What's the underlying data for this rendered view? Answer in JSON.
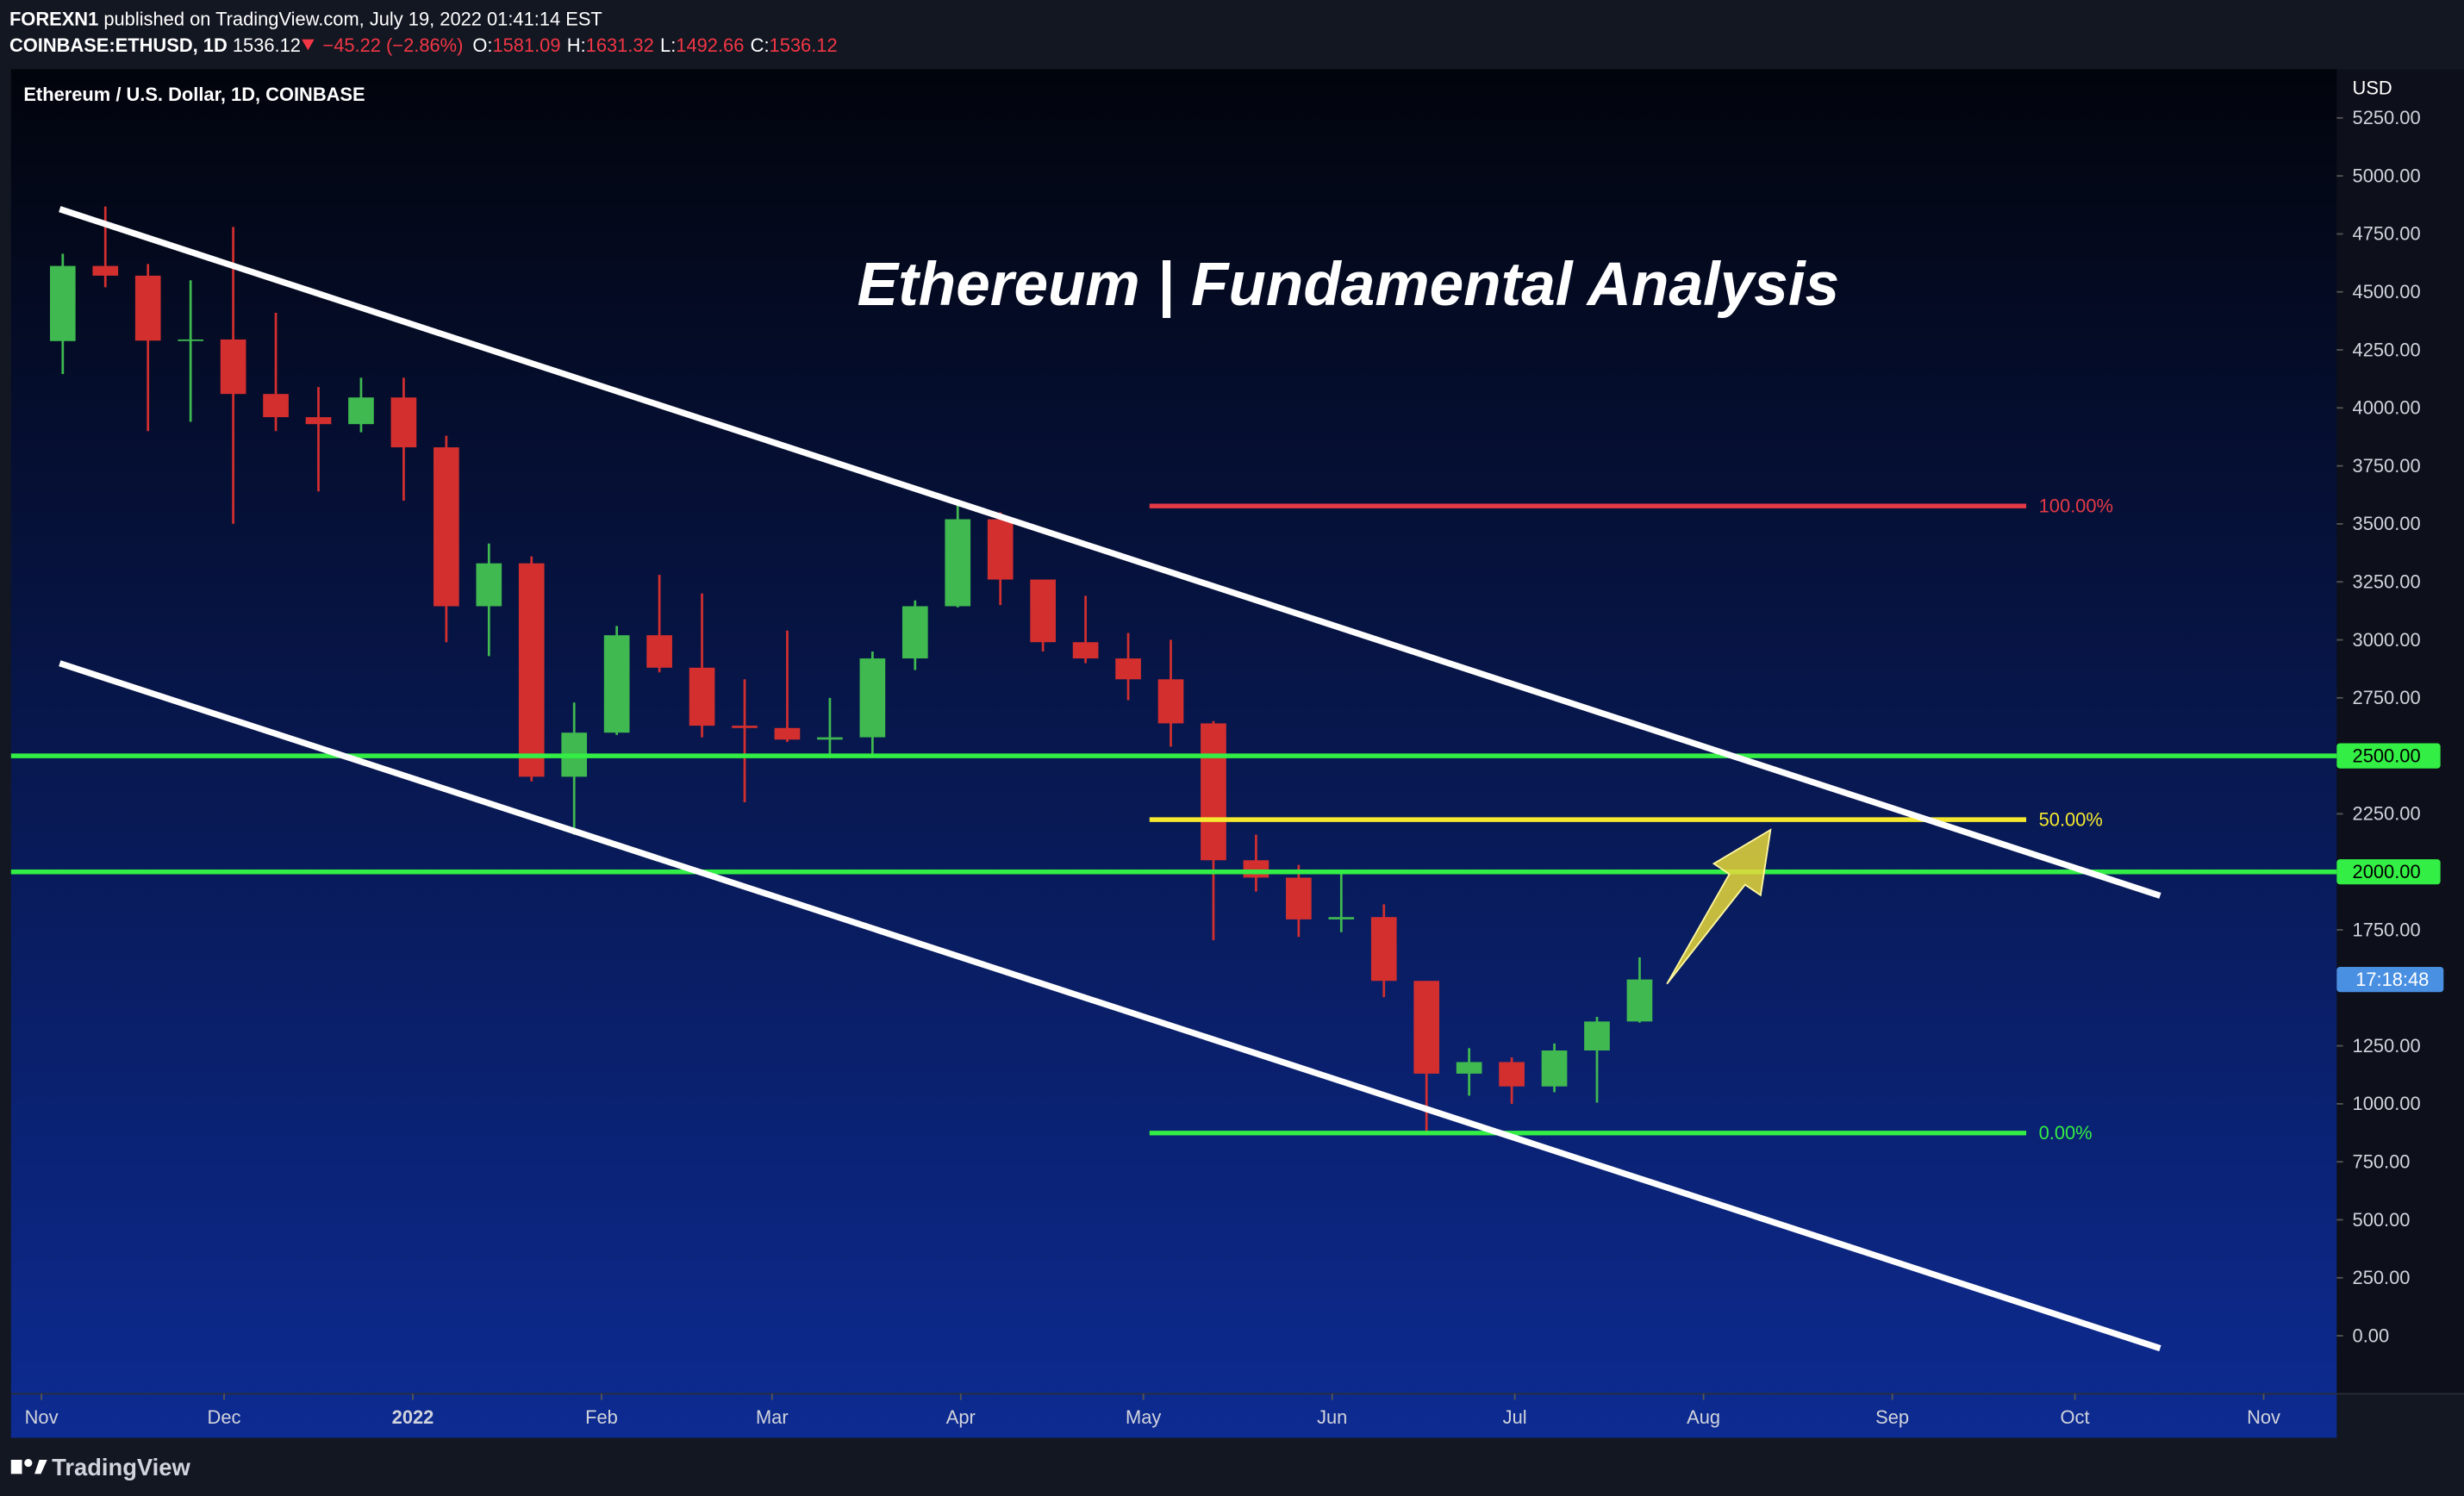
{
  "header": {
    "publisher": "FOREXN1",
    "published": "published on TradingView.com, July 19, 2022 01:41:14 EST",
    "symbol": "COINBASE:ETHUSD, 1D",
    "last": "1536.12",
    "change": "−45.22 (−2.86%)",
    "ohlc": [
      {
        "key": "O:",
        "value": "1581.09"
      },
      {
        "key": "H:",
        "value": "1631.32"
      },
      {
        "key": "L:",
        "value": "1492.66"
      },
      {
        "key": "C:",
        "value": "1536.12"
      }
    ]
  },
  "chart_data": {
    "type": "candlestick",
    "title": "Ethereum | Fundamental Analysis",
    "legend_text": "Ethereum / U.S. Dollar, 1D, COINBASE",
    "y_unit": "USD",
    "up_color": "#3fb950",
    "down_color": "#d32f2f",
    "grid": false,
    "x": [
      "2021-11-01",
      "2021-11-08",
      "2021-11-15",
      "2021-11-22",
      "2021-11-29",
      "2021-12-06",
      "2021-12-13",
      "2021-12-20",
      "2021-12-27",
      "2022-01-03",
      "2022-01-10",
      "2022-01-17",
      "2022-01-24",
      "2022-01-31",
      "2022-02-07",
      "2022-02-14",
      "2022-02-21",
      "2022-02-28",
      "2022-03-07",
      "2022-03-14",
      "2022-03-21",
      "2022-03-28",
      "2022-04-04",
      "2022-04-11",
      "2022-04-18",
      "2022-04-25",
      "2022-05-02",
      "2022-05-09",
      "2022-05-16",
      "2022-05-23",
      "2022-05-30",
      "2022-06-06",
      "2022-06-13",
      "2022-06-20",
      "2022-06-27",
      "2022-07-04",
      "2022-07-11",
      "2022-07-18"
    ],
    "open": [
      4288,
      4612,
      4570,
      4290,
      4295,
      4060,
      3960,
      3930,
      4045,
      3830,
      3145,
      3330,
      2410,
      2600,
      3020,
      2880,
      2630,
      2620,
      2570,
      2580,
      2920,
      3145,
      3520,
      3260,
      2990,
      2920,
      2830,
      2640,
      2050,
      1975,
      1795,
      1805,
      1530,
      1130,
      1180,
      1075,
      1230,
      1355
    ],
    "high": [
      4665,
      4868,
      4620,
      4550,
      4780,
      4410,
      4090,
      4130,
      4130,
      3880,
      3415,
      3360,
      2730,
      3060,
      3280,
      3200,
      2830,
      3040,
      2750,
      2950,
      3170,
      3580,
      3550,
      3260,
      3190,
      3030,
      3000,
      2650,
      2160,
      2030,
      2010,
      1860,
      1530,
      1240,
      1200,
      1260,
      1375,
      1631
    ],
    "low": [
      4146,
      4520,
      3900,
      3940,
      3500,
      3900,
      3640,
      3895,
      3600,
      2990,
      2930,
      2390,
      2160,
      2590,
      2860,
      2580,
      2300,
      2560,
      2500,
      2505,
      2870,
      3140,
      3150,
      2950,
      2900,
      2740,
      2540,
      1705,
      1915,
      1720,
      1740,
      1460,
      880,
      1035,
      1000,
      1050,
      1005,
      1350
    ],
    "close": [
      4612,
      4570,
      4290,
      4295,
      4060,
      3960,
      3930,
      4045,
      3830,
      3145,
      3330,
      2410,
      2600,
      3020,
      2880,
      2630,
      2620,
      2570,
      2580,
      2920,
      3145,
      3520,
      3260,
      2990,
      2920,
      2830,
      2640,
      2050,
      1975,
      1795,
      1805,
      1530,
      1130,
      1180,
      1075,
      1230,
      1355,
      1536
    ],
    "xlim": [
      "2021-10-27",
      "2022-11-13"
    ],
    "xticks": [
      {
        "value": "2021-11-01",
        "label": "Nov"
      },
      {
        "value": "2021-12-01",
        "label": "Dec"
      },
      {
        "value": "2022-01-01",
        "label": "2022"
      },
      {
        "value": "2022-02-01",
        "label": "Feb"
      },
      {
        "value": "2022-03-01",
        "label": "Mar"
      },
      {
        "value": "2022-04-01",
        "label": "Apr"
      },
      {
        "value": "2022-05-01",
        "label": "May"
      },
      {
        "value": "2022-06-01",
        "label": "Jun"
      },
      {
        "value": "2022-07-01",
        "label": "Jul"
      },
      {
        "value": "2022-08-01",
        "label": "Aug"
      },
      {
        "value": "2022-09-01",
        "label": "Sep"
      },
      {
        "value": "2022-10-01",
        "label": "Oct"
      },
      {
        "value": "2022-11-01",
        "label": "Nov"
      }
    ],
    "ylim": [
      -250,
      5460
    ],
    "yticks": [
      {
        "value": 0,
        "label": "0.00"
      },
      {
        "value": 250,
        "label": "250.00"
      },
      {
        "value": 500,
        "label": "500.00"
      },
      {
        "value": 750,
        "label": "750.00"
      },
      {
        "value": 1000,
        "label": "1000.00"
      },
      {
        "value": 1250,
        "label": "1250.00"
      },
      {
        "value": 1750,
        "label": "1750.00"
      },
      {
        "value": 2250,
        "label": "2250.00"
      },
      {
        "value": 2750,
        "label": "2750.00"
      },
      {
        "value": 3000,
        "label": "3000.00"
      },
      {
        "value": 3250,
        "label": "3250.00"
      },
      {
        "value": 3500,
        "label": "3500.00"
      },
      {
        "value": 3750,
        "label": "3750.00"
      },
      {
        "value": 4000,
        "label": "4000.00"
      },
      {
        "value": 4250,
        "label": "4250.00"
      },
      {
        "value": 4500,
        "label": "4500.00"
      },
      {
        "value": 4750,
        "label": "4750.00"
      },
      {
        "value": 5000,
        "label": "5000.00"
      },
      {
        "value": 5250,
        "label": "5250.00"
      }
    ],
    "levels": [
      {
        "value": 2500,
        "label": "2500.00",
        "color": "#33ee44"
      },
      {
        "value": 2000,
        "label": "2000.00",
        "color": "#33ee44"
      }
    ],
    "fib": {
      "x": [
        "2022-05-02",
        "2022-09-23"
      ],
      "levels": [
        {
          "value": 3577,
          "label": "100.00%",
          "color": "#e53945"
        },
        {
          "value": 2225,
          "label": "50.00%",
          "color": "#f5e82e"
        },
        {
          "value": 874,
          "label": "0.00%",
          "color": "#33ee44"
        }
      ]
    },
    "trendlines": [
      {
        "x": [
          "2021-11-04",
          "2022-10-15"
        ],
        "y": [
          4857,
          1897
        ],
        "color": "#ffffff"
      },
      {
        "x": [
          "2021-11-04",
          "2022-10-15"
        ],
        "y": [
          2899,
          -54
        ],
        "color": "#ffffff"
      }
    ],
    "arrow": {
      "x": [
        "2022-07-26",
        "2022-08-12"
      ],
      "y": [
        1517,
        2181
      ],
      "color": "#e6d83a"
    },
    "timer": "17:18:48"
  }
}
